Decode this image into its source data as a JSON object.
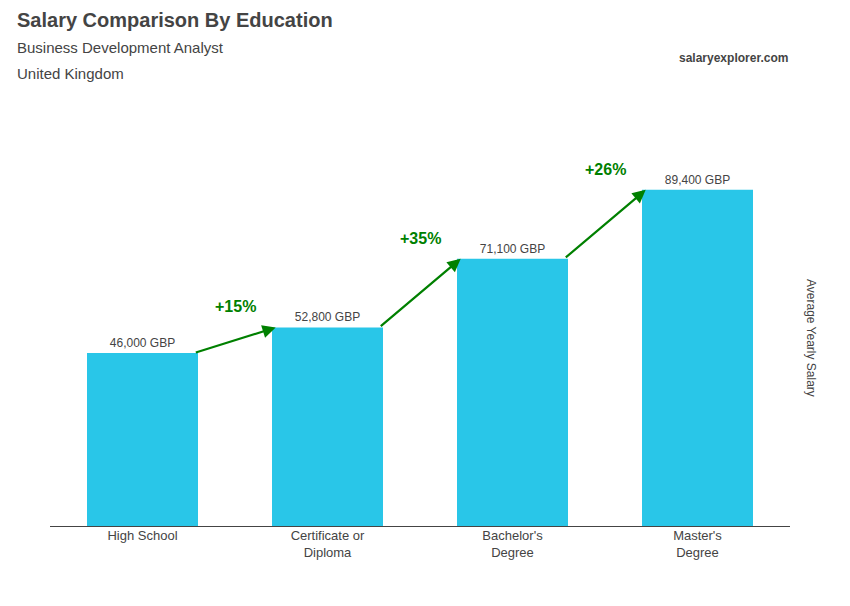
{
  "chart_data": {
    "type": "bar",
    "title": "Salary Comparison By Education",
    "subtitle": [
      "Business Development Analyst",
      "United Kingdom"
    ],
    "ylabel": "Average Yearly Salary",
    "annotations": [
      "salaryexplorer.com"
    ],
    "categories": [
      "High School",
      "Certificate or\nDiploma",
      "Bachelor's\nDegree",
      "Master's\nDegree"
    ],
    "values": [
      46000,
      52800,
      71100,
      89400
    ],
    "value_labels": [
      "46,000 GBP",
      "52,800 GBP",
      "71,100 GBP",
      "89,400 GBP"
    ],
    "data_labels": true,
    "color": "#29c6e8",
    "changes": {
      "labels": [
        "+15%",
        "+35%",
        "+26%"
      ],
      "color": "green"
    },
    "ylim": [
      0,
      100000
    ],
    "tick_labels": "x",
    "grid": false
  }
}
